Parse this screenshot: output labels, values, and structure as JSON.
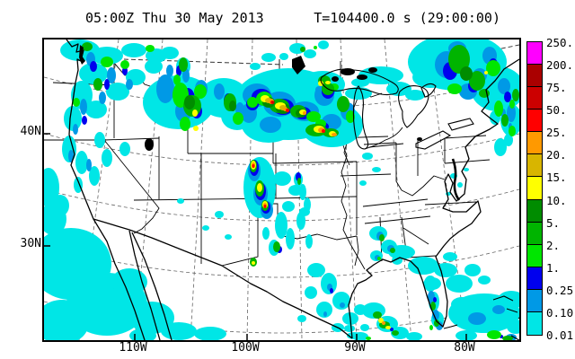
{
  "title": {
    "datetime": "05:00Z Thu 30 May 2013",
    "time_label": "T=104400.0 s (29:00:00)"
  },
  "map": {
    "y_axis_labels": [
      "40N",
      "30N"
    ],
    "x_axis_labels": [
      "110W",
      "100W",
      "90W",
      "80W"
    ]
  },
  "colorbar": {
    "labels": [
      "250.",
      "200.",
      "75.",
      "50.",
      "25.",
      "20.",
      "15.",
      "10.",
      "5.",
      "2.",
      "1.",
      "0.25",
      "0.10",
      "0.01"
    ],
    "colors": [
      "#FF00FF",
      "#AA0000",
      "#CC0000",
      "#FF0000",
      "#FF9900",
      "#D8B500",
      "#FFFF00",
      "#008C00",
      "#00B400",
      "#00E600",
      "#0000EE",
      "#0099E6",
      "#00E6E6"
    ]
  }
}
